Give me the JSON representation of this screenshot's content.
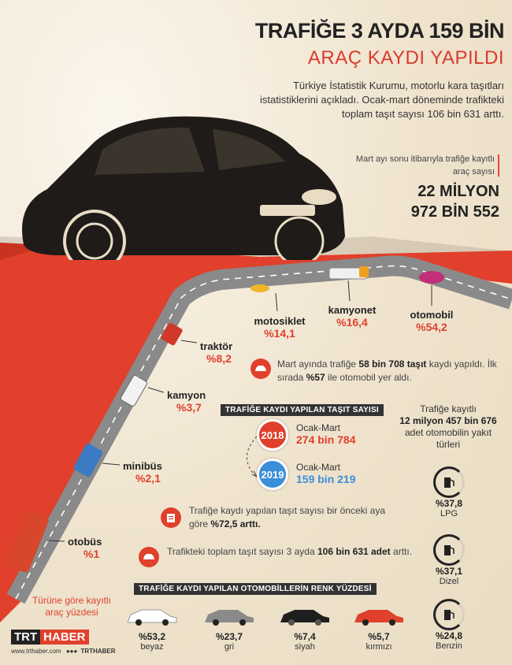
{
  "header": {
    "title_line1": "TRAFİĞE 3 AYDA 159 BİN",
    "title_line2": "ARAÇ KAYDI YAPILDI",
    "intro": "Türkiye İstatistik Kurumu, motorlu kara taşıtları istatistiklerini açıkladı. Ocak-mart döneminde trafikteki toplam taşıt sayısı 106 bin 631 arttı."
  },
  "registered_total": {
    "caption": "Mart ayı sonu itibarıyla trafiğe kayıtlı araç sayısı",
    "value_line1": "22 MİLYON",
    "value_line2": "972 BİN 552"
  },
  "vehicle_types": [
    {
      "label": "otomobil",
      "pct": "%54,2"
    },
    {
      "label": "kamyonet",
      "pct": "%16,4"
    },
    {
      "label": "motosiklet",
      "pct": "%14,1"
    },
    {
      "label": "traktör",
      "pct": "%8,2"
    },
    {
      "label": "kamyon",
      "pct": "%3,7"
    },
    {
      "label": "minibüs",
      "pct": "%2,1"
    },
    {
      "label": "otobüs",
      "pct": "%1"
    }
  ],
  "vehicle_types_caption": "Türüne göre kayıtlı araç yüzdesi",
  "notes": {
    "march": {
      "pre": "Mart ayında trafiğe ",
      "bold1": "58 bin 708 taşıt",
      "mid": " kaydı yapıldı. İlk sırada ",
      "bold2": "%57",
      "post": " ile otomobil yer aldı."
    },
    "monthly": {
      "pre": "Trafiğe kaydı yapılan taşıt sayısı bir önceki aya göre ",
      "bold": "%72,5 arttı."
    },
    "total": {
      "pre": "Trafikteki toplam taşıt sayısı 3 ayda ",
      "bold": "106 bin 631 adet",
      "post": " arttı."
    }
  },
  "registrations": {
    "title": "TRAFİĞE KAYDI YAPILAN TAŞIT SAYISI",
    "items": [
      {
        "year": "2018",
        "period": "Ocak-Mart",
        "value": "274 bin 784",
        "color": "#e0402c"
      },
      {
        "year": "2019",
        "period": "Ocak-Mart",
        "value": "159 bin 219",
        "color": "#3b8fd9"
      }
    ]
  },
  "fuel": {
    "caption_line1": "Trafiğe kayıtlı",
    "caption_line2": "12 milyon 457 bin 676",
    "caption_line3": "adet otomobilin yakıt türleri",
    "items": [
      {
        "pct": "%37,8",
        "name": "LPG"
      },
      {
        "pct": "%37,1",
        "name": "Dizel"
      },
      {
        "pct": "%24,8",
        "name": "Benzin"
      }
    ]
  },
  "colors": {
    "title": "TRAFİĞE KAYDI YAPILAN OTOMOBİLLERİN RENK YÜZDESİ",
    "items": [
      {
        "pct": "%53,2",
        "name": "beyaz",
        "hex": "#ffffff"
      },
      {
        "pct": "%23,7",
        "name": "gri",
        "hex": "#8a8a8a"
      },
      {
        "pct": "%7,4",
        "name": "siyah",
        "hex": "#1e1e1e"
      },
      {
        "pct": "%5,7",
        "name": "kırmızı",
        "hex": "#e0402c"
      }
    ]
  },
  "footer": {
    "logo_trt": "TRT",
    "logo_haber": "HABER",
    "site": "www.trthaber.com",
    "handle": "TRTHABER"
  },
  "palette": {
    "accent": "#e0402c",
    "road": "#8e8e8e",
    "background": "#f1e7d4"
  }
}
